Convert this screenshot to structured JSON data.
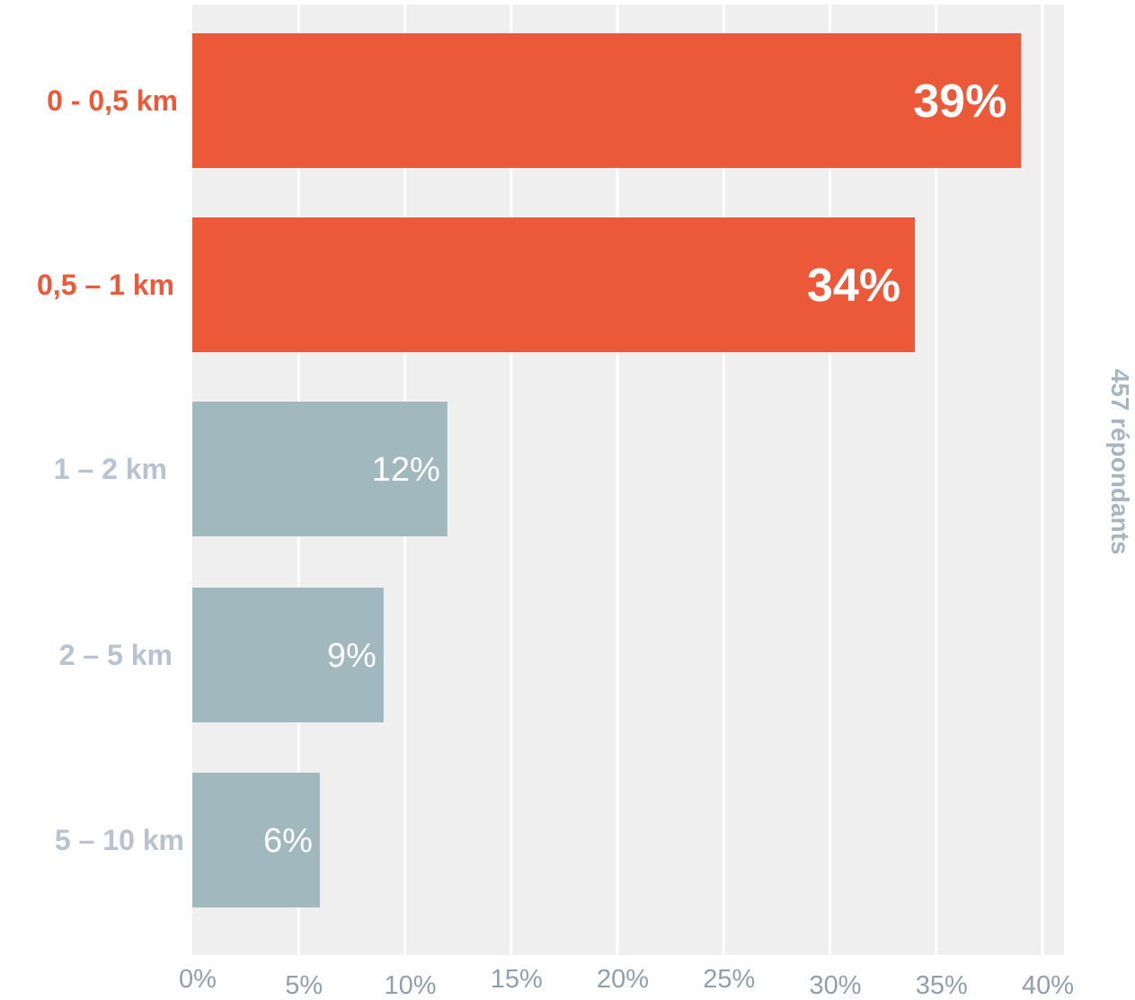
{
  "chart_data": {
    "type": "bar",
    "orientation": "horizontal",
    "categories": [
      "0 - 0,5 km",
      "0,5 – 1 km",
      "1 – 2 km",
      "2 – 5 km",
      "5 – 10 km"
    ],
    "values": [
      39,
      34,
      12,
      9,
      6
    ],
    "value_labels": [
      "39%",
      "34%",
      "12%",
      "9%",
      "6%"
    ],
    "highlighted": [
      true,
      true,
      false,
      false,
      false
    ],
    "xlim": [
      0,
      40
    ],
    "x_ticks": [
      "0%",
      "5%",
      "10%",
      "15%",
      "20%",
      "25%",
      "30%",
      "35%",
      "40%"
    ],
    "side_note": "457 répondants",
    "grid": true,
    "colors": {
      "highlight_bar": "#eb5939",
      "normal_bar": "#a1b8bf",
      "highlight_label": "#eb5939",
      "normal_label": "#b8c2d0",
      "plot_background": "#efefef",
      "gridline": "#ffffff"
    }
  }
}
